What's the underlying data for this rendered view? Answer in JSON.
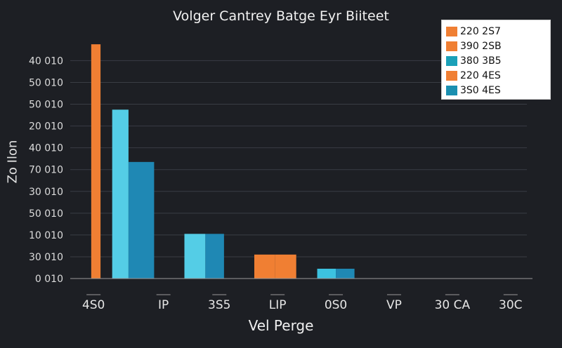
{
  "chart_data": {
    "type": "bar",
    "title": "Volger Cantrey Batge Eyr Biiteet",
    "xlabel": "Vel Perge",
    "ylabel": "Zo Ilon",
    "ylim": [
      0,
      11
    ],
    "y_ticks": [
      {
        "value": 0,
        "label": "0 010"
      },
      {
        "value": 1,
        "label": "30 010"
      },
      {
        "value": 2,
        "label": "10 010"
      },
      {
        "value": 3,
        "label": "50 010"
      },
      {
        "value": 4,
        "label": "30 010"
      },
      {
        "value": 5,
        "label": "70 010"
      },
      {
        "value": 6,
        "label": "40 010"
      },
      {
        "value": 7,
        "label": "20 010"
      },
      {
        "value": 8,
        "label": "50 010"
      },
      {
        "value": 9,
        "label": "50 010"
      },
      {
        "value": 10,
        "label": "40 010"
      }
    ],
    "x_ticks": [
      {
        "pos": 0.5,
        "label": "4S0"
      },
      {
        "pos": 2.0,
        "label": "IP"
      },
      {
        "pos": 3.2,
        "label": "3S5"
      },
      {
        "pos": 4.45,
        "label": "LIP"
      },
      {
        "pos": 5.7,
        "label": "0S0"
      },
      {
        "pos": 6.95,
        "label": "VP"
      },
      {
        "pos": 8.2,
        "label": "30 CA"
      },
      {
        "pos": 9.45,
        "label": "30C"
      }
    ],
    "x_range": [
      0,
      9.8
    ],
    "bars": [
      {
        "x0": 0.45,
        "x1": 0.65,
        "value": 10.75,
        "color": "#f07f33"
      },
      {
        "x0": 0.9,
        "x1": 1.25,
        "value": 7.75,
        "color": "#54cde6"
      },
      {
        "x0": 1.25,
        "x1": 1.8,
        "value": 5.35,
        "color": "#1f88b4"
      },
      {
        "x0": 2.45,
        "x1": 2.9,
        "value": 2.05,
        "color": "#54cde6"
      },
      {
        "x0": 2.9,
        "x1": 3.3,
        "value": 2.05,
        "color": "#1f88b4"
      },
      {
        "x0": 3.95,
        "x1": 4.4,
        "value": 1.1,
        "color": "#f07f33"
      },
      {
        "x0": 4.4,
        "x1": 4.85,
        "value": 1.1,
        "color": "#f07f33"
      },
      {
        "x0": 5.3,
        "x1": 5.7,
        "value": 0.45,
        "color": "#3cc2e0"
      },
      {
        "x0": 5.7,
        "x1": 6.1,
        "value": 0.45,
        "color": "#1f88b4"
      }
    ],
    "legend": [
      {
        "label": "220 2S7",
        "color": "#f07f33"
      },
      {
        "label": "390 2SB",
        "color": "#f07f33"
      },
      {
        "label": "380 3B5",
        "color": "#1aa0b8"
      },
      {
        "label": "220 4ES",
        "color": "#f07f33"
      },
      {
        "label": "3S0 4ES",
        "color": "#1a8fb0"
      }
    ],
    "legend_position": "top-right",
    "grid": true
  }
}
